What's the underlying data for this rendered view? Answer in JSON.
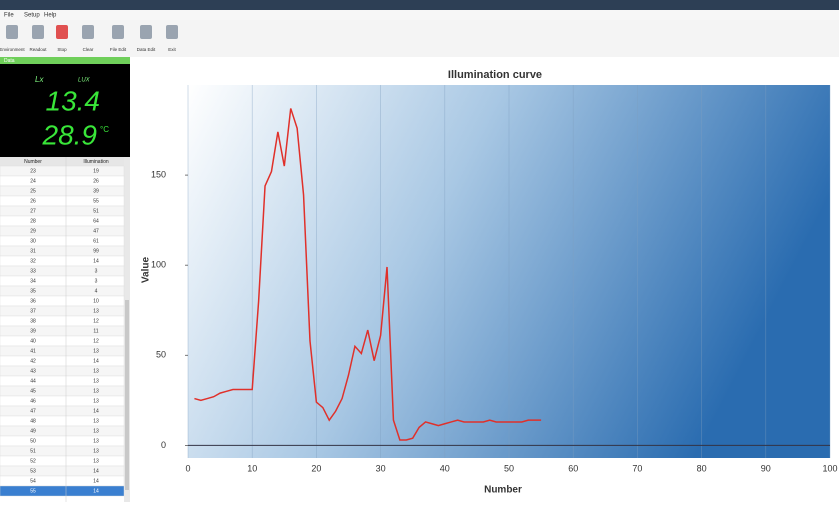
{
  "menu": [
    "File",
    "Setup",
    "Help"
  ],
  "toolbar": [
    "Environment",
    "Readout",
    "Stop",
    "Clear",
    "File Edit",
    "Data Edit",
    "Exit"
  ],
  "panel_title": "Data",
  "display": {
    "unit_label": "Lx",
    "unit": "LUX",
    "illumination": "13.4",
    "temperature": "28.9",
    "temperature_unit": "°C"
  },
  "table": {
    "header": [
      "Number",
      "Illumination"
    ]
  },
  "chart_data": {
    "type": "line",
    "title": "Illumination curve",
    "xlabel": "Number",
    "ylabel": "Value",
    "x": [
      1,
      2,
      3,
      4,
      5,
      6,
      7,
      8,
      9,
      10,
      11,
      12,
      13,
      14,
      15,
      16,
      17,
      18,
      19,
      20,
      21,
      22,
      23,
      24,
      25,
      26,
      27,
      28,
      29,
      30,
      31,
      32,
      33,
      34,
      35,
      36,
      37,
      38,
      39,
      40,
      41,
      42,
      43,
      44,
      45,
      46,
      47,
      48,
      49,
      50,
      51,
      52,
      53,
      54,
      55
    ],
    "values": [
      26,
      25,
      26,
      27,
      29,
      30,
      31,
      31,
      31,
      31,
      80,
      144,
      152,
      174,
      155,
      187,
      176,
      139,
      58,
      24,
      21,
      14,
      19,
      26,
      39,
      55,
      51,
      64,
      47,
      61,
      99,
      14,
      3,
      3,
      4,
      10,
      13,
      12,
      11,
      12,
      13,
      14,
      13,
      13,
      13,
      13,
      14,
      13,
      13,
      13,
      13,
      13,
      14,
      14,
      14
    ],
    "color": "#e0302a",
    "xlim": [
      0,
      100
    ],
    "ylim": [
      -7,
      200
    ],
    "xticks": [
      0,
      10,
      20,
      30,
      40,
      50,
      60,
      70,
      80,
      90,
      100
    ],
    "yticks": [
      0,
      50,
      100,
      150
    ],
    "grid": true
  }
}
